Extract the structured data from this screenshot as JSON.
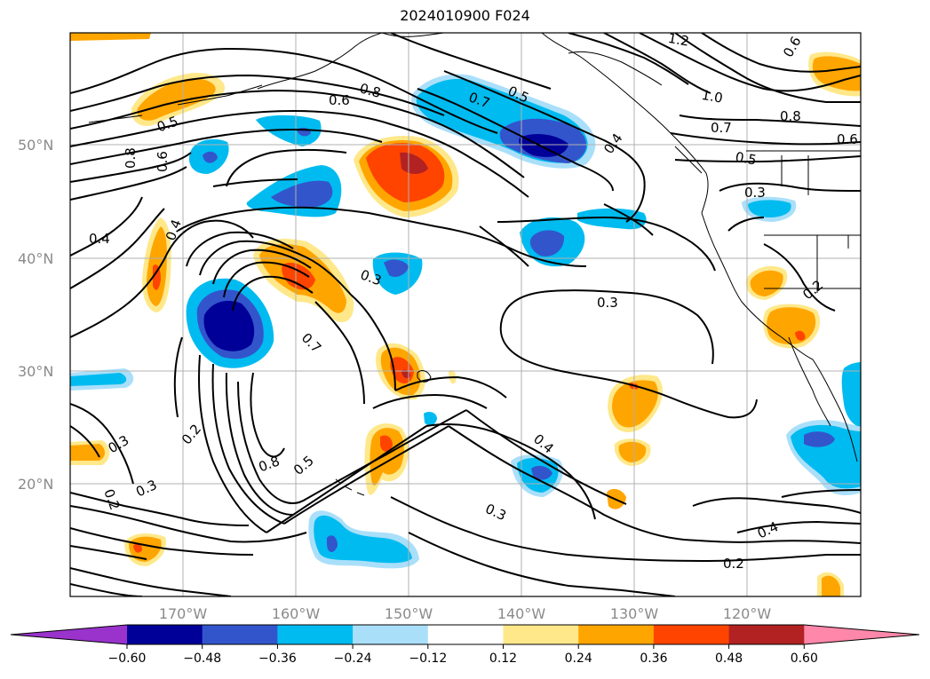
{
  "title": "2024010900 F024",
  "map": {
    "lat_labels": [
      "50°N",
      "40°N",
      "30°N",
      "20°N"
    ],
    "lon_labels": [
      "170°W",
      "160°W",
      "150°W",
      "140°W",
      "130°W",
      "120°W"
    ],
    "contour_labels": [
      "1.2",
      "1.0",
      "0.8",
      "0.8",
      "0.7",
      "0.7",
      "0.6",
      "0.6",
      "0.5",
      "0.5",
      "0.5",
      "0.4",
      "0.4",
      "0.4",
      "0.4",
      "0.4",
      "0.3",
      "0.3",
      "0.3",
      "0.3",
      "0.3",
      "0.3",
      "0.2",
      "0.2",
      "0.2",
      "0.2",
      "0.8",
      "0.7",
      "0.6",
      "0.8",
      "0.5",
      "0.6"
    ]
  },
  "colorbar": {
    "ticks": [
      "−0.60",
      "−0.48",
      "−0.36",
      "−0.24",
      "−0.12",
      "0.12",
      "0.24",
      "0.36",
      "0.48",
      "0.60"
    ],
    "colors": [
      "#9933cc",
      "#000099",
      "#3355cc",
      "#00bbf0",
      "#aadffa",
      "#ffffff",
      "#ffe88a",
      "#ffa500",
      "#ff4400",
      "#b22222",
      "#ff88aa"
    ]
  }
}
